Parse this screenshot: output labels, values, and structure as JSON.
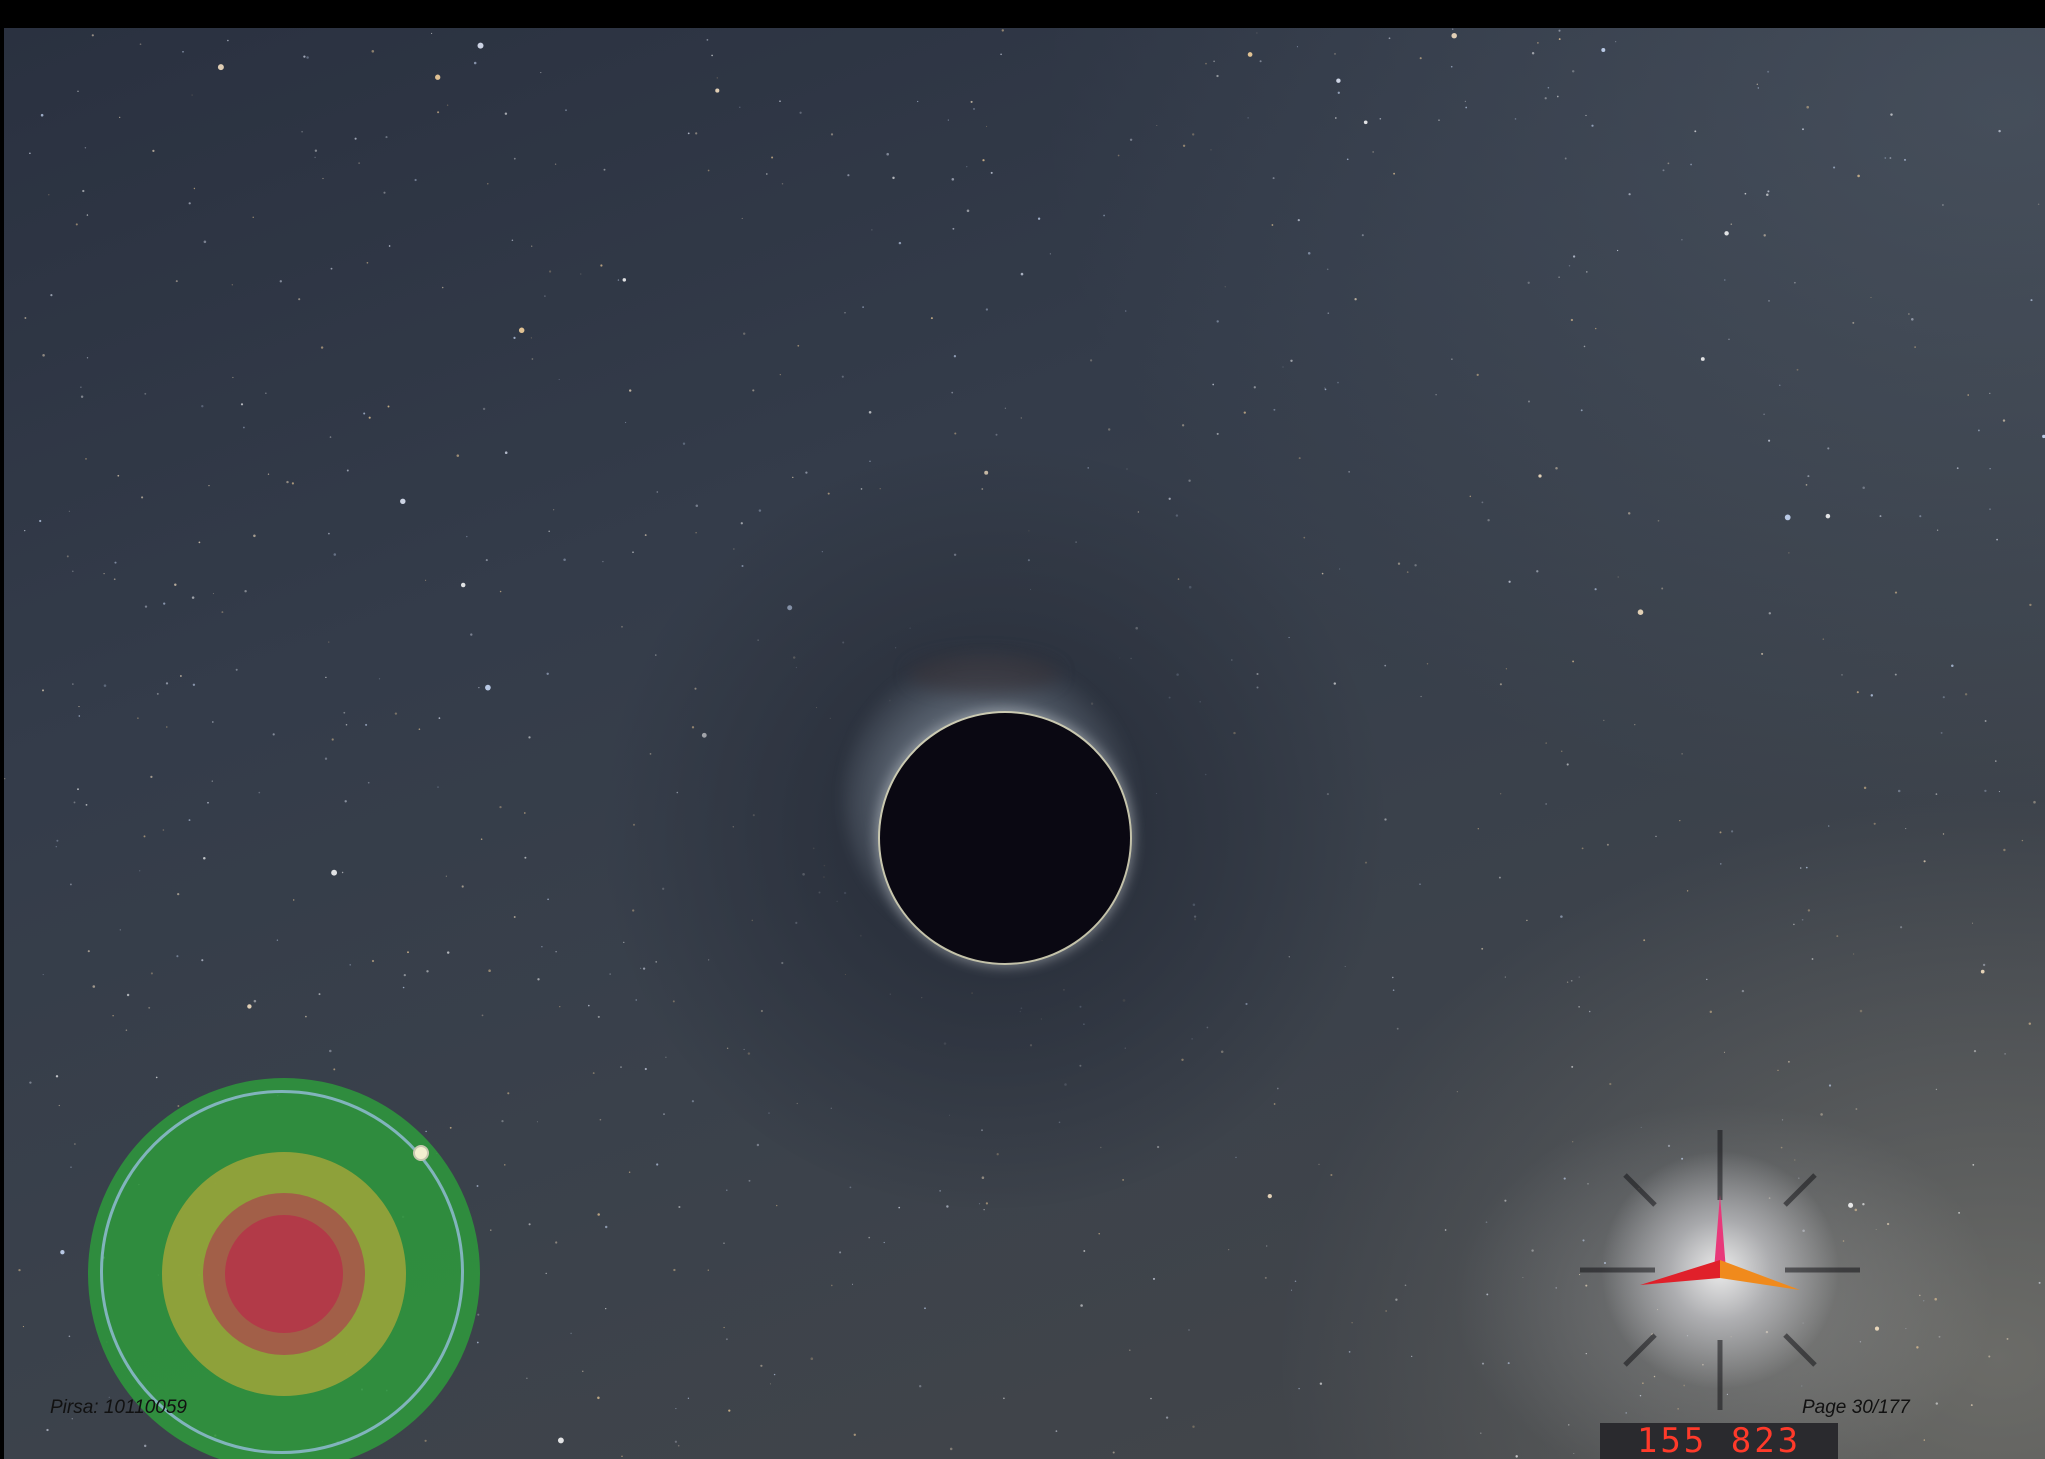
{
  "footer": {
    "source_label": "Pirsa: 10110059",
    "page_label": "Page 30/177"
  },
  "hud": {
    "counter_value": "155 823",
    "counter_color": "#ff3a2a",
    "radar_colors": {
      "outer": "#2e9a3c",
      "middle": "#94a23a",
      "inner": "#b23a48"
    },
    "compass_arrows": {
      "up": "#e8387a",
      "left": "#e0202a",
      "right": "#f08a1c"
    }
  },
  "scene": {
    "subject_icon": "black-hole-icon",
    "background": "starfield"
  }
}
